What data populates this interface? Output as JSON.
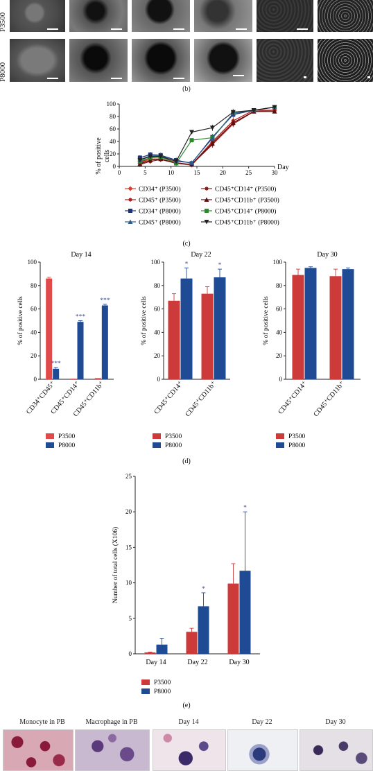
{
  "panel_b": {
    "rows": [
      "P3500",
      "P8000"
    ],
    "caption": "(b)"
  },
  "panel_c": {
    "caption": "(c)",
    "ylabel_1": "% of positive",
    "ylabel_2": "cells",
    "xlabel": "Day",
    "legend": [
      "CD34⁺ (P3500)",
      "CD45⁺CD14⁺ (P3500)",
      "CD45⁺ (P3500)",
      "CD45⁺CD11b⁺ (P3500)",
      "CD34⁺ (P8000)",
      "CD45⁺CD14⁺ (P8000)",
      "CD45⁺ (P8000)",
      "CD45⁺CD11b⁺ (P8000)"
    ]
  },
  "panel_d": {
    "caption": "(d)"
  },
  "panel_e": {
    "caption": "(e)"
  },
  "panel_f": {
    "titles": [
      "Monocyte in PB",
      "Macrophage in PB",
      "Day 14",
      "Day 22",
      "Day 30"
    ]
  },
  "chart_data": [
    {
      "id": "c",
      "type": "line",
      "xlabel": "Day",
      "ylabel": "% of positive cells",
      "xlim": [
        0,
        30
      ],
      "ylim": [
        0,
        100
      ],
      "x": [
        4,
        6,
        8,
        11,
        14,
        18,
        22,
        26,
        30
      ],
      "series": [
        {
          "name": "CD34⁺ (P3500)",
          "color": "#d9402a",
          "marker": "diamond",
          "values": [
            5,
            12,
            12,
            5,
            2,
            38,
            70,
            88,
            90
          ]
        },
        {
          "name": "CD45⁺CD14⁺ (P3500)",
          "color": "#8b1a1a",
          "marker": "circle",
          "values": [
            3,
            8,
            11,
            5,
            3,
            35,
            68,
            88,
            88
          ]
        },
        {
          "name": "CD45⁺ (P3500)",
          "color": "#b51d1d",
          "marker": "circle",
          "values": [
            6,
            14,
            15,
            6,
            3,
            40,
            73,
            90,
            90
          ]
        },
        {
          "name": "CD45⁺CD11b⁺ (P3500)",
          "color": "#5a1010",
          "marker": "triangle",
          "values": [
            4,
            10,
            12,
            5,
            3,
            37,
            70,
            88,
            88
          ]
        },
        {
          "name": "CD34⁺ (P8000)",
          "color": "#1f2f7a",
          "marker": "square",
          "values": [
            14,
            19,
            18,
            10,
            5,
            47,
            83,
            90,
            95
          ]
        },
        {
          "name": "CD45⁺CD14⁺ (P8000)",
          "color": "#2a8a2a",
          "marker": "square",
          "values": [
            8,
            14,
            15,
            5,
            42,
            46,
            85,
            90,
            95
          ]
        },
        {
          "name": "CD45⁺ (P8000)",
          "color": "#2c5d8a",
          "marker": "triangle",
          "values": [
            11,
            17,
            17,
            8,
            6,
            45,
            85,
            90,
            95
          ]
        },
        {
          "name": "CD45⁺CD11b⁺ (P8000)",
          "color": "#222222",
          "marker": "inverted-triangle",
          "values": [
            10,
            16,
            16,
            8,
            55,
            62,
            87,
            90,
            95
          ]
        }
      ]
    },
    {
      "id": "d-day14",
      "type": "bar",
      "title": "Day 14",
      "ylabel": "% of positive cells",
      "ylim": [
        0,
        100
      ],
      "categories": [
        "CD34⁺CD45⁺",
        "CD45⁺CD14⁺",
        "CD45⁺CD11b⁺"
      ],
      "series": [
        {
          "name": "P3500",
          "color": "#e04a4a",
          "values": [
            86,
            0.5,
            1
          ],
          "errors": [
            1,
            0,
            0
          ]
        },
        {
          "name": "P8000",
          "color": "#1f4a94",
          "values": [
            9,
            49,
            63
          ],
          "errors": [
            1,
            1,
            1
          ]
        }
      ],
      "annotations": [
        "***",
        "***",
        "***"
      ],
      "legend": [
        "P3500",
        "P8000"
      ]
    },
    {
      "id": "d-day22",
      "type": "bar",
      "title": "Day 22",
      "ylabel": "% of positive cells",
      "ylim": [
        0,
        100
      ],
      "categories": [
        "CD45⁺CD14⁺",
        "CD45⁺CD11b⁺"
      ],
      "series": [
        {
          "name": "P3500",
          "color": "#cc3a3a",
          "values": [
            67,
            73
          ],
          "errors": [
            6,
            6
          ]
        },
        {
          "name": "P8000",
          "color": "#1f4a94",
          "values": [
            86,
            87
          ],
          "errors": [
            9,
            7
          ]
        }
      ],
      "annotations": [
        "*",
        "*"
      ],
      "legend": [
        "P3500",
        "P8000"
      ]
    },
    {
      "id": "d-day30",
      "type": "bar",
      "title": "Day 30",
      "ylabel": "% of positive cells",
      "ylim": [
        0,
        100
      ],
      "categories": [
        "CD45⁺CD14⁺",
        "CD45⁺CD11b⁺"
      ],
      "series": [
        {
          "name": "P3500",
          "color": "#cc3a3a",
          "values": [
            89,
            88
          ],
          "errors": [
            5,
            6
          ]
        },
        {
          "name": "P8000",
          "color": "#1f4a94",
          "values": [
            95,
            94
          ],
          "errors": [
            1,
            1
          ]
        }
      ],
      "legend": [
        "P3500",
        "P8000"
      ]
    },
    {
      "id": "e",
      "type": "bar",
      "ylabel": "Number of total cells (X106)",
      "ylim": [
        0,
        25
      ],
      "categories": [
        "Day 14",
        "Day 22",
        "Day 30"
      ],
      "series": [
        {
          "name": "P3500",
          "color": "#cc3a3a",
          "values": [
            0.2,
            3.1,
            9.9
          ],
          "errors": [
            0.05,
            0.5,
            2.8
          ]
        },
        {
          "name": "P8000",
          "color": "#1f4a94",
          "values": [
            1.3,
            6.7,
            11.7
          ],
          "errors": [
            0.9,
            1.9,
            8.3
          ]
        }
      ],
      "annotations": [
        "",
        "*",
        "*"
      ],
      "legend": [
        "P3500",
        "P8000"
      ]
    }
  ]
}
